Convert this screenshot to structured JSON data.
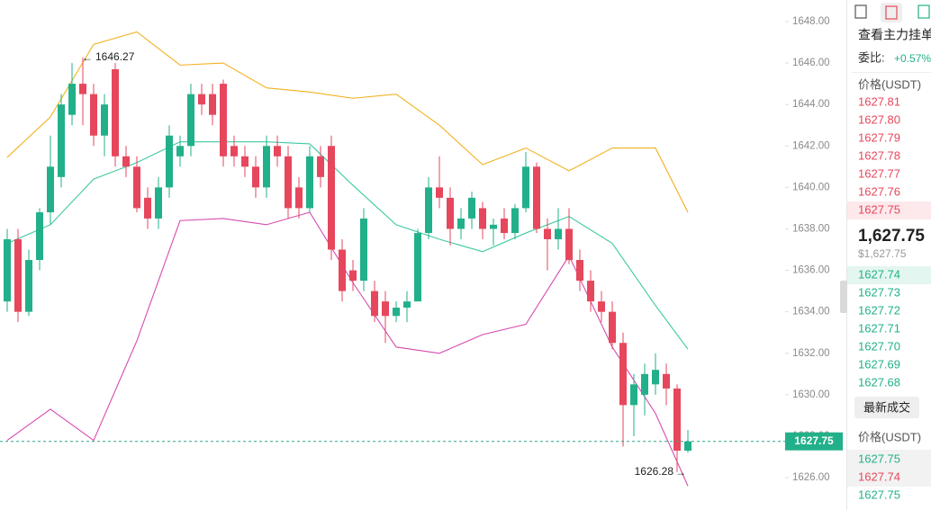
{
  "chart_data": {
    "type": "candlestick",
    "ylim": [
      1624.44,
      1649.04
    ],
    "yticks": [
      {
        "value": 1626,
        "label": "1626.00"
      },
      {
        "value": 1628,
        "label": "1628.00"
      },
      {
        "value": 1630,
        "label": "1630.00"
      },
      {
        "value": 1632,
        "label": "1632.00"
      },
      {
        "value": 1634,
        "label": "1634.00"
      },
      {
        "value": 1636,
        "label": "1636.00"
      },
      {
        "value": 1638,
        "label": "1638.00"
      },
      {
        "value": 1640,
        "label": "1640.00"
      },
      {
        "value": 1642,
        "label": "1642.00"
      },
      {
        "value": 1644,
        "label": "1644.00"
      },
      {
        "value": 1646,
        "label": "1646.00"
      },
      {
        "value": 1648,
        "label": "1648.00"
      }
    ],
    "up_color": "#22b08a",
    "down_color": "#e6475c",
    "candles": [
      {
        "o": 1634.5,
        "h": 1638,
        "l": 1634,
        "c": 1637.5
      },
      {
        "o": 1637.5,
        "h": 1638,
        "l": 1633.5,
        "c": 1634
      },
      {
        "o": 1634,
        "h": 1637,
        "l": 1633.8,
        "c": 1636.5
      },
      {
        "o": 1636.5,
        "h": 1639,
        "l": 1636,
        "c": 1638.8
      },
      {
        "o": 1638.8,
        "h": 1642.5,
        "l": 1638.2,
        "c": 1641
      },
      {
        "o": 1640.5,
        "h": 1644.5,
        "l": 1640,
        "c": 1644
      },
      {
        "o": 1643.5,
        "h": 1646,
        "l": 1643,
        "c": 1645
      },
      {
        "o": 1645,
        "h": 1646.27,
        "l": 1643,
        "c": 1644.5
      },
      {
        "o": 1644.5,
        "h": 1645,
        "l": 1642,
        "c": 1642.5
      },
      {
        "o": 1642.5,
        "h": 1644.5,
        "l": 1641.5,
        "c": 1644
      },
      {
        "o": 1645.7,
        "h": 1646,
        "l": 1641,
        "c": 1641.5
      },
      {
        "o": 1641.5,
        "h": 1642,
        "l": 1640.5,
        "c": 1641
      },
      {
        "o": 1641,
        "h": 1641.5,
        "l": 1638.8,
        "c": 1639
      },
      {
        "o": 1639.5,
        "h": 1640,
        "l": 1638,
        "c": 1638.5
      },
      {
        "o": 1638.5,
        "h": 1640.5,
        "l": 1638,
        "c": 1640
      },
      {
        "o": 1640,
        "h": 1643,
        "l": 1639.5,
        "c": 1642.5
      },
      {
        "o": 1641.5,
        "h": 1642.5,
        "l": 1641,
        "c": 1642
      },
      {
        "o": 1642,
        "h": 1645,
        "l": 1641.5,
        "c": 1644.5
      },
      {
        "o": 1644.5,
        "h": 1645,
        "l": 1643.5,
        "c": 1644
      },
      {
        "o": 1644.5,
        "h": 1645,
        "l": 1643,
        "c": 1643.5
      },
      {
        "o": 1645,
        "h": 1645.2,
        "l": 1641,
        "c": 1641.5
      },
      {
        "o": 1642,
        "h": 1642.5,
        "l": 1641,
        "c": 1641.5
      },
      {
        "o": 1641.5,
        "h": 1642,
        "l": 1640.5,
        "c": 1641
      },
      {
        "o": 1641,
        "h": 1641.5,
        "l": 1639.5,
        "c": 1640
      },
      {
        "o": 1640,
        "h": 1642.5,
        "l": 1639.5,
        "c": 1642
      },
      {
        "o": 1642,
        "h": 1642.5,
        "l": 1641,
        "c": 1641.5
      },
      {
        "o": 1641.5,
        "h": 1642,
        "l": 1638.5,
        "c": 1639
      },
      {
        "o": 1640,
        "h": 1640.5,
        "l": 1638.5,
        "c": 1639
      },
      {
        "o": 1639,
        "h": 1642,
        "l": 1638.8,
        "c": 1641.5
      },
      {
        "o": 1641.5,
        "h": 1642,
        "l": 1640,
        "c": 1640.5
      },
      {
        "o": 1642,
        "h": 1642.5,
        "l": 1636.5,
        "c": 1637
      },
      {
        "o": 1637,
        "h": 1637.5,
        "l": 1634.5,
        "c": 1635
      },
      {
        "o": 1636,
        "h": 1636.5,
        "l": 1635,
        "c": 1635.5
      },
      {
        "o": 1635.5,
        "h": 1639,
        "l": 1635,
        "c": 1638.5
      },
      {
        "o": 1635,
        "h": 1635.5,
        "l": 1633.5,
        "c": 1633.8
      },
      {
        "o": 1634.5,
        "h": 1635,
        "l": 1632.5,
        "c": 1633.8
      },
      {
        "o": 1633.8,
        "h": 1634.5,
        "l": 1633.5,
        "c": 1634.2
      },
      {
        "o": 1634.2,
        "h": 1635,
        "l": 1633.5,
        "c": 1634.5
      },
      {
        "o": 1634.5,
        "h": 1638,
        "l": 1634.5,
        "c": 1637.8
      },
      {
        "o": 1637.8,
        "h": 1640.5,
        "l": 1637.5,
        "c": 1640
      },
      {
        "o": 1640,
        "h": 1641.5,
        "l": 1639,
        "c": 1639.5
      },
      {
        "o": 1639.5,
        "h": 1640,
        "l": 1637.2,
        "c": 1638
      },
      {
        "o": 1638,
        "h": 1639,
        "l": 1637.5,
        "c": 1638.5
      },
      {
        "o": 1638.5,
        "h": 1639.8,
        "l": 1638,
        "c": 1639.5
      },
      {
        "o": 1639,
        "h": 1639.3,
        "l": 1637.5,
        "c": 1638
      },
      {
        "o": 1638,
        "h": 1638.5,
        "l": 1637.2,
        "c": 1638.2
      },
      {
        "o": 1638.5,
        "h": 1639,
        "l": 1637.5,
        "c": 1637.8
      },
      {
        "o": 1637.8,
        "h": 1639.2,
        "l": 1637.5,
        "c": 1639
      },
      {
        "o": 1639,
        "h": 1641.7,
        "l": 1638.8,
        "c": 1641
      },
      {
        "o": 1641,
        "h": 1641.2,
        "l": 1637.8,
        "c": 1638
      },
      {
        "o": 1638,
        "h": 1638.5,
        "l": 1636,
        "c": 1637.5
      },
      {
        "o": 1637.5,
        "h": 1639,
        "l": 1637,
        "c": 1638
      },
      {
        "o": 1638,
        "h": 1639,
        "l": 1636.3,
        "c": 1636.5
      },
      {
        "o": 1636.5,
        "h": 1637,
        "l": 1635,
        "c": 1635.5
      },
      {
        "o": 1635.5,
        "h": 1636,
        "l": 1634,
        "c": 1634.5
      },
      {
        "o": 1634.5,
        "h": 1635,
        "l": 1633.5,
        "c": 1634
      },
      {
        "o": 1634,
        "h": 1634.5,
        "l": 1632.2,
        "c": 1632.5
      },
      {
        "o": 1632.5,
        "h": 1633,
        "l": 1627.5,
        "c": 1629.5
      },
      {
        "o": 1629.5,
        "h": 1631,
        "l": 1628,
        "c": 1630.5
      },
      {
        "o": 1630,
        "h": 1631.5,
        "l": 1629,
        "c": 1631
      },
      {
        "o": 1630.5,
        "h": 1632,
        "l": 1630,
        "c": 1631.2
      },
      {
        "o": 1631,
        "h": 1631.5,
        "l": 1629.5,
        "c": 1630.3
      },
      {
        "o": 1630.3,
        "h": 1630.5,
        "l": 1626.28,
        "c": 1627.3
      },
      {
        "o": 1627.3,
        "h": 1628.3,
        "l": 1627.2,
        "c": 1627.75
      }
    ],
    "series": [
      {
        "color": "#f2b120",
        "x": [
          0,
          4,
          8,
          12,
          16,
          20,
          24,
          28,
          32,
          36,
          40,
          44,
          48,
          52,
          56,
          60,
          63
        ],
        "values": [
          1641.45,
          1643.4,
          1646.9,
          1647.5,
          1645.9,
          1646,
          1644.8,
          1644.6,
          1644.3,
          1644.5,
          1643,
          1641.1,
          1641.9,
          1640.8,
          1641.9,
          1641.9,
          1638.8
        ]
      },
      {
        "color": "#3dc9a2",
        "x": [
          0,
          4,
          8,
          12,
          16,
          20,
          24,
          28,
          32,
          36,
          40,
          44,
          48,
          52,
          56,
          60,
          63
        ],
        "values": [
          1637.3,
          1638.2,
          1640.4,
          1641.2,
          1642.2,
          1642.2,
          1642.2,
          1642.1,
          1640.1,
          1638.2,
          1637.5,
          1636.9,
          1637.8,
          1638.6,
          1637.3,
          1634.3,
          1632.2
        ]
      },
      {
        "color": "#d64bae",
        "x": [
          0,
          4,
          8,
          12,
          16,
          20,
          24,
          28,
          32,
          36,
          40,
          44,
          48,
          52,
          56,
          60,
          63
        ],
        "values": [
          1627.8,
          1629.3,
          1627.8,
          1632.6,
          1638.4,
          1638.5,
          1638.2,
          1638.8,
          1635.4,
          1632.3,
          1632,
          1632.9,
          1633.4,
          1636.7,
          1632.3,
          1629.1,
          1625.6
        ]
      }
    ],
    "annotations": [
      {
        "text": "1646.27",
        "candle": 7,
        "value": 1646.27
      },
      {
        "text": "1626.28",
        "candle": 62,
        "value": 1626.28
      }
    ],
    "last_price": 1627.75,
    "last_price_label": "1627.75"
  },
  "panel": {
    "title": "查看主力挂单",
    "ratio_label": "委比:",
    "ratio": "+0.57%",
    "price_header": "价格(USDT)",
    "asks": [
      "1627.81",
      "1627.80",
      "1627.79",
      "1627.78",
      "1627.77",
      "1627.76",
      "1627.75"
    ],
    "last": "1,627.75",
    "last_usd": "$1,627.75",
    "bids": [
      "1627.74",
      "1627.73",
      "1627.72",
      "1627.71",
      "1627.70",
      "1627.69",
      "1627.68"
    ],
    "trades_button": "最新成交",
    "trades_header": "价格(USDT)",
    "trades": [
      {
        "price": "1627.75",
        "side": "buy"
      },
      {
        "price": "1627.74",
        "side": "sell"
      },
      {
        "price": "1627.75",
        "side": "buy"
      }
    ]
  }
}
